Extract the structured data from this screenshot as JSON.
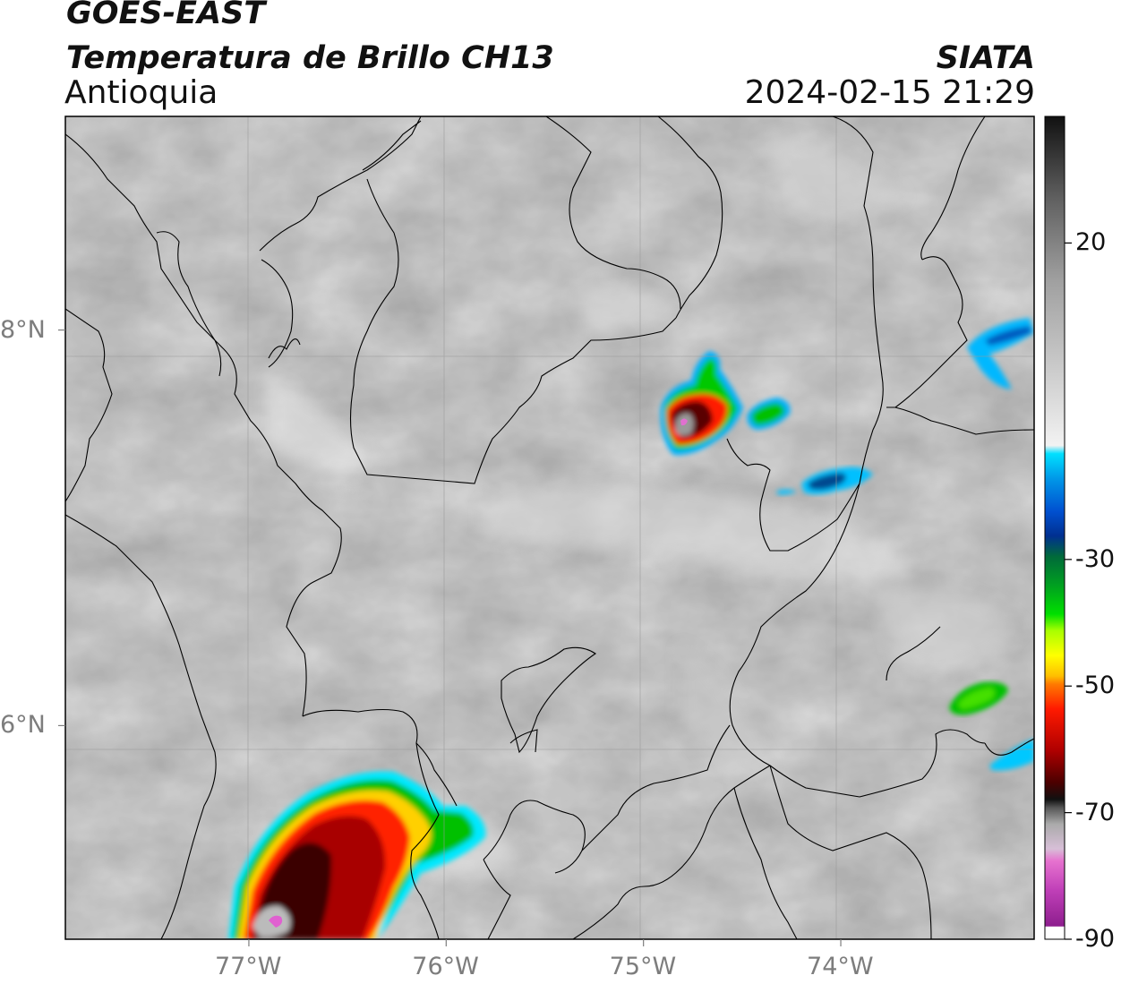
{
  "header": {
    "satellite": "GOES-EAST",
    "product": "Temperatura de Brillo CH13",
    "region": "Antioquia",
    "organization": "SIATA",
    "datetime": "2024-02-15 21:29"
  },
  "map": {
    "lon_range": [
      -77.93,
      -73.02
    ],
    "lat_range": [
      4.92,
      9.08
    ],
    "x_ticks": [
      {
        "value": -77,
        "label": "77°W"
      },
      {
        "value": -76,
        "label": "76°W"
      },
      {
        "value": -75,
        "label": "75°W"
      },
      {
        "value": -74,
        "label": "74°W"
      }
    ],
    "y_ticks": [
      {
        "value": 8,
        "label": "8°N"
      },
      {
        "value": 6,
        "label": "6°N"
      }
    ],
    "grid": true
  },
  "colorbar": {
    "range": [
      -90,
      40
    ],
    "ticks": [
      {
        "value": 20,
        "label": "20"
      },
      {
        "value": -30,
        "label": "-30"
      },
      {
        "value": -50,
        "label": "-50"
      },
      {
        "value": -70,
        "label": "-70"
      },
      {
        "value": -90,
        "label": "-90"
      }
    ]
  }
}
